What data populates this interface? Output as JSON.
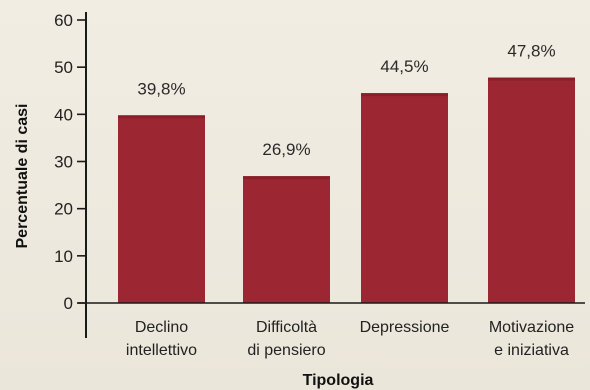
{
  "chart_data": {
    "type": "bar",
    "categories": [
      [
        "Declino",
        "intellettivo"
      ],
      [
        "Difficoltà",
        "di pensiero"
      ],
      [
        "Depressione"
      ],
      [
        "Motivazione",
        "e iniziativa"
      ]
    ],
    "values": [
      39.8,
      26.9,
      44.5,
      47.8
    ],
    "value_labels": [
      "39,8%",
      "26,9%",
      "44,5%",
      "47,8%"
    ],
    "xlabel": "Tipologia",
    "ylabel": "Percentuale di casi",
    "ylim": [
      0,
      60
    ],
    "yticks": [
      0,
      10,
      20,
      30,
      40,
      50,
      60
    ],
    "grid": false,
    "colors": {
      "bar": "#9c2631",
      "bar_dark": "#7e1a24",
      "axis": "#1a1a1a"
    }
  }
}
